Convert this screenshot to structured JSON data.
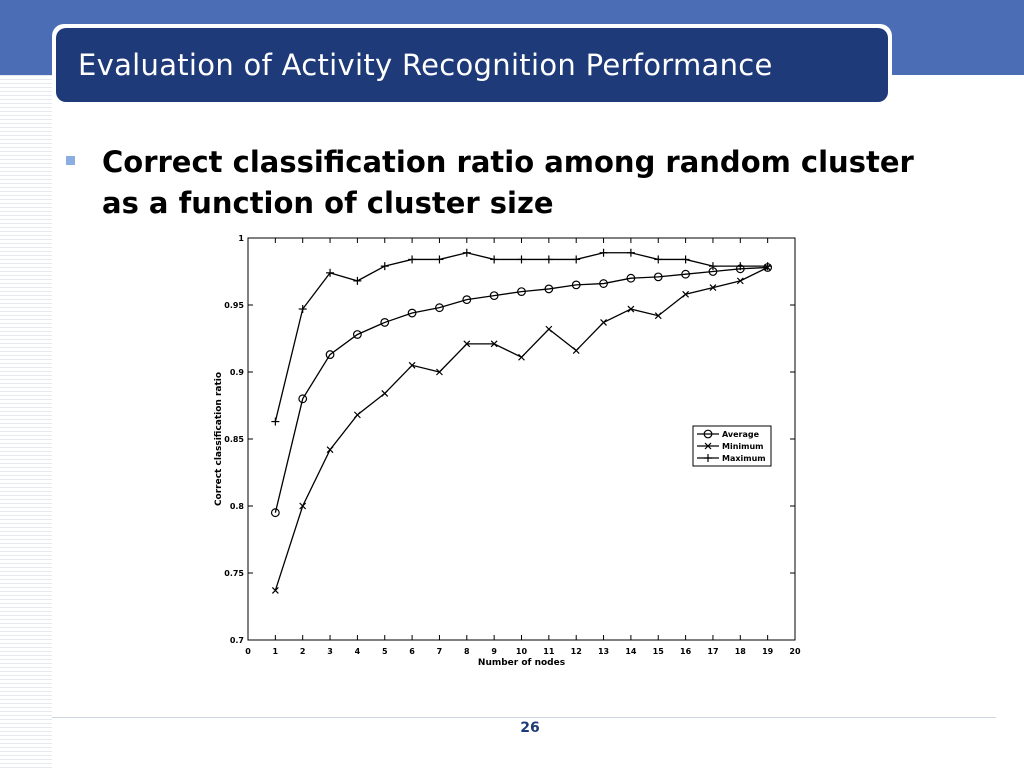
{
  "slide": {
    "title": "Evaluation of Activity Recognition Performance",
    "bullet": "Correct classification ratio among random cluster as a function of cluster size",
    "page_number": "26"
  },
  "colors": {
    "band": "#4a6db5",
    "title_box": "#1f3a78",
    "bullet": "#8aaee0"
  },
  "chart_data": {
    "type": "line",
    "xlabel": "Number of nodes",
    "ylabel": "Correct classification ratio",
    "xlim": [
      0,
      20
    ],
    "ylim": [
      0.7,
      1
    ],
    "xticks": [
      0,
      1,
      2,
      3,
      4,
      5,
      6,
      7,
      8,
      9,
      10,
      11,
      12,
      13,
      14,
      15,
      16,
      17,
      18,
      19,
      20
    ],
    "yticks": [
      0.7,
      0.75,
      0.8,
      0.85,
      0.9,
      0.95,
      1
    ],
    "grid": false,
    "legend": "right",
    "x": [
      1,
      2,
      3,
      4,
      5,
      6,
      7,
      8,
      9,
      10,
      11,
      12,
      13,
      14,
      15,
      16,
      17,
      18,
      19
    ],
    "series": [
      {
        "name": "Average",
        "marker": "circle",
        "values": [
          0.795,
          0.88,
          0.913,
          0.928,
          0.937,
          0.944,
          0.948,
          0.954,
          0.957,
          0.96,
          0.962,
          0.965,
          0.966,
          0.97,
          0.971,
          0.973,
          0.975,
          0.977,
          0.978
        ]
      },
      {
        "name": "Minimum",
        "marker": "x",
        "values": [
          0.737,
          0.8,
          0.842,
          0.868,
          0.884,
          0.905,
          0.9,
          0.921,
          0.921,
          0.911,
          0.932,
          0.916,
          0.937,
          0.947,
          0.942,
          0.958,
          0.963,
          0.968,
          0.978
        ]
      },
      {
        "name": "Maximum",
        "marker": "plus",
        "values": [
          0.863,
          0.947,
          0.974,
          0.968,
          0.979,
          0.984,
          0.984,
          0.989,
          0.984,
          0.984,
          0.984,
          0.984,
          0.989,
          0.989,
          0.984,
          0.984,
          0.979,
          0.979,
          0.979
        ]
      }
    ]
  }
}
